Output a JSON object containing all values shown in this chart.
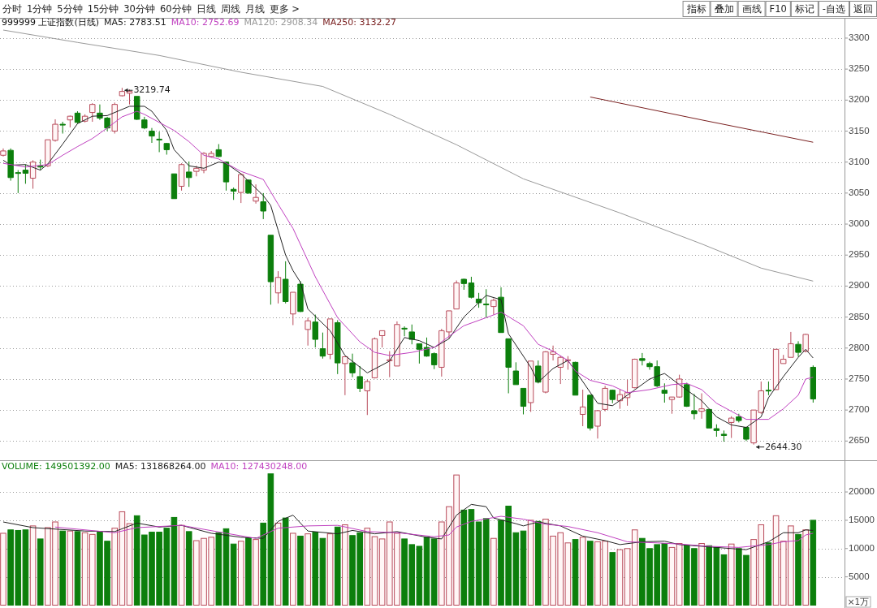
{
  "chart_data": [
    {
      "type": "candlestick",
      "title": "999999 上证指数(日线)",
      "categories": [
        null,
        null,
        null,
        null,
        null,
        null,
        null,
        null,
        null,
        null,
        null,
        null,
        null,
        null,
        null,
        null,
        null,
        null,
        null,
        null,
        null,
        null,
        null,
        null,
        null,
        null,
        null,
        null,
        null,
        null,
        null,
        null,
        null,
        null,
        null,
        null,
        null,
        null,
        null,
        null,
        null,
        null,
        null,
        null,
        null,
        null,
        null,
        null,
        null,
        null,
        null,
        null,
        null,
        null,
        null,
        null,
        null,
        null,
        null,
        null,
        null,
        null,
        null,
        null,
        null,
        null,
        null,
        null,
        null,
        null,
        null,
        null,
        null,
        null,
        null,
        null,
        null,
        null,
        null,
        null,
        null,
        null,
        null,
        null,
        null,
        null,
        null,
        null,
        null,
        null,
        null,
        null,
        null,
        null,
        null,
        null,
        null,
        null,
        null,
        null,
        null,
        null,
        null,
        null,
        null,
        null,
        null,
        null,
        null,
        null
      ],
      "ohlc": [
        [
          3111,
          3122,
          3109,
          3118
        ],
        [
          3119,
          3122,
          3070,
          3075
        ],
        [
          3083,
          3087,
          3050,
          3082
        ],
        [
          3087,
          3096,
          3065,
          3082
        ],
        [
          3074,
          3103,
          3057,
          3100
        ],
        [
          3094,
          3104,
          3087,
          3092
        ],
        [
          3094,
          3136,
          3092,
          3136
        ],
        [
          3135,
          3169,
          3133,
          3161
        ],
        [
          3161,
          3165,
          3146,
          3160
        ],
        [
          3168,
          3175,
          3156,
          3174
        ],
        [
          3179,
          3182,
          3162,
          3164
        ],
        [
          3166,
          3177,
          3164,
          3174
        ],
        [
          3180,
          3195,
          3165,
          3193
        ],
        [
          3179,
          3193,
          3168,
          3171
        ],
        [
          3171,
          3173,
          3150,
          3155
        ],
        [
          3150,
          3196,
          3146,
          3193
        ],
        [
          3207,
          3219.74,
          3206,
          3214
        ],
        [
          3211,
          3217,
          3193,
          3214
        ],
        [
          3206,
          3206,
          3168,
          3169
        ],
        [
          3168,
          3173,
          3153,
          3155
        ],
        [
          3150,
          3155,
          3131,
          3142
        ],
        [
          3137,
          3149,
          3116,
          3136
        ],
        [
          3130,
          3131,
          3112,
          3120
        ],
        [
          3081,
          3081,
          3041,
          3041
        ],
        [
          3061,
          3098,
          3054,
          3096
        ],
        [
          3084,
          3101,
          3060,
          3075
        ],
        [
          3085,
          3094,
          3077,
          3090
        ],
        [
          3087,
          3116,
          3082,
          3114
        ],
        [
          3109,
          3118,
          3107,
          3114
        ],
        [
          3120,
          3129,
          3108,
          3109
        ],
        [
          3100,
          3101,
          3054,
          3068
        ],
        [
          3056,
          3059,
          3039,
          3053
        ],
        [
          3051,
          3082,
          3034,
          3080
        ],
        [
          3071,
          3072,
          3049,
          3050
        ],
        [
          3037,
          3064,
          3033,
          3043
        ],
        [
          3036,
          3050,
          3008,
          3021
        ],
        [
          2982,
          2982,
          2870,
          2907
        ],
        [
          2889,
          2924,
          2872,
          2914
        ],
        [
          2911,
          2940,
          2872,
          2875
        ],
        [
          2855,
          2890,
          2837,
          2890
        ],
        [
          2903,
          2908,
          2858,
          2859
        ],
        [
          2830,
          2849,
          2804,
          2844
        ],
        [
          2842,
          2854,
          2801,
          2814
        ],
        [
          2799,
          2825,
          2783,
          2787
        ],
        [
          2790,
          2847,
          2782,
          2847
        ],
        [
          2841,
          2845,
          2758,
          2776
        ],
        [
          2775,
          2786,
          2724,
          2786
        ],
        [
          2776,
          2791,
          2753,
          2760
        ],
        [
          2754,
          2771,
          2729,
          2735
        ],
        [
          2731,
          2749,
          2692,
          2746
        ],
        [
          2752,
          2817,
          2751,
          2815
        ],
        [
          2820,
          2828,
          2801,
          2828
        ],
        [
          2780,
          2795,
          2753,
          2781
        ],
        [
          2771,
          2843,
          2771,
          2838
        ],
        [
          2832,
          2835,
          2819,
          2831
        ],
        [
          2826,
          2838,
          2806,
          2814
        ],
        [
          2807,
          2807,
          2775,
          2798
        ],
        [
          2801,
          2817,
          2786,
          2787
        ],
        [
          2791,
          2793,
          2766,
          2773
        ],
        [
          2769,
          2831,
          2754,
          2828
        ],
        [
          2826,
          2860,
          2815,
          2860
        ],
        [
          2863,
          2909,
          2863,
          2905
        ],
        [
          2911,
          2912,
          2894,
          2904
        ],
        [
          2905,
          2915,
          2880,
          2882
        ],
        [
          2879,
          2889,
          2865,
          2873
        ],
        [
          2871,
          2895,
          2849,
          2870
        ],
        [
          2867,
          2880,
          2854,
          2877
        ],
        [
          2882,
          2898,
          2825,
          2825
        ],
        [
          2815,
          2815,
          2727,
          2769
        ],
        [
          2763,
          2777,
          2741,
          2741
        ],
        [
          2735,
          2735,
          2693,
          2706
        ],
        [
          2712,
          2779,
          2697,
          2779
        ],
        [
          2771,
          2780,
          2743,
          2745
        ],
        [
          2729,
          2795,
          2727,
          2794
        ],
        [
          2790,
          2804,
          2780,
          2794
        ],
        [
          2769,
          2788,
          2742,
          2785
        ],
        [
          2780,
          2787,
          2765,
          2781
        ],
        [
          2777,
          2778,
          2724,
          2724
        ],
        [
          2693,
          2733,
          2674,
          2705
        ],
        [
          2724,
          2725,
          2667,
          2671
        ],
        [
          2674,
          2700,
          2654,
          2699
        ],
        [
          2701,
          2739,
          2698,
          2735
        ],
        [
          2732,
          2733,
          2711,
          2717
        ],
        [
          2715,
          2733,
          2702,
          2725
        ],
        [
          2720,
          2749,
          2707,
          2728
        ],
        [
          2736,
          2783,
          2735,
          2782
        ],
        [
          2783,
          2792,
          2772,
          2780
        ],
        [
          2775,
          2778,
          2765,
          2770
        ],
        [
          2770,
          2780,
          2737,
          2739
        ],
        [
          2732,
          2743,
          2712,
          2727
        ],
        [
          2717,
          2721,
          2694,
          2721
        ],
        [
          2721,
          2757,
          2720,
          2750
        ],
        [
          2741,
          2744,
          2705,
          2706
        ],
        [
          2699,
          2726,
          2685,
          2694
        ],
        [
          2698,
          2727,
          2686,
          2702
        ],
        [
          2701,
          2701,
          2671,
          2671
        ],
        [
          2670,
          2677,
          2657,
          2667
        ],
        [
          2661,
          2667,
          2649,
          2659
        ],
        [
          2680,
          2690,
          2655,
          2687
        ],
        [
          2689,
          2694,
          2680,
          2683
        ],
        [
          2672,
          2673,
          2650,
          2653
        ],
        [
          2647,
          2700,
          2644.3,
          2700
        ],
        [
          2696,
          2746,
          2694,
          2731
        ],
        [
          2732,
          2746,
          2724,
          2731
        ],
        [
          2733,
          2798,
          2733,
          2798
        ],
        [
          2775,
          2789,
          2775,
          2782
        ],
        [
          2785,
          2826,
          2785,
          2807
        ],
        [
          2806,
          2811,
          2786,
          2793
        ],
        [
          2795,
          2823,
          2793,
          2822
        ],
        [
          2769,
          2772,
          2712,
          2718
        ]
      ],
      "series": [
        {
          "name": "MA5: 2783.51",
          "type": "line",
          "color": "#222222",
          "values": [
            3103,
            3095,
            null,
            3096,
            null,
            3087,
            3097,
            null,
            3129,
            null,
            3162,
            null,
            3174,
            null,
            3175,
            null,
            null,
            3190,
            null,
            3190,
            3182,
            null,
            3151,
            3120,
            null,
            3094,
            null,
            3090,
            null,
            3100,
            3098,
            null,
            3081,
            null,
            null,
            3046,
            3030,
            2990,
            2950,
            2925,
            2906,
            2863,
            null,
            null,
            2828,
            null,
            2788,
            null,
            null,
            2760,
            null,
            null,
            2779,
            null,
            2817,
            null,
            2812,
            null,
            2801,
            null,
            2815,
            null,
            2850,
            null,
            null,
            2885,
            null,
            2878,
            2823,
            null,
            null,
            2769,
            2745,
            null,
            2767,
            null,
            2780,
            null,
            2746,
            null,
            2711,
            null,
            2707,
            null,
            2724,
            null,
            null,
            2750,
            null,
            2759,
            null,
            2741,
            null,
            null,
            2715,
            null,
            2689,
            null,
            2676,
            null,
            2672,
            null,
            2689,
            2720,
            null,
            2754,
            null,
            2785,
            2798,
            2784
          ]
        },
        {
          "name": "MA10: 2752.69",
          "type": "line",
          "color": "#c040c0",
          "values": [
            3098,
            null,
            null,
            3092,
            null,
            null,
            3096,
            null,
            3111,
            null,
            3125,
            null,
            3138,
            null,
            3155,
            null,
            3173,
            null,
            3182,
            3177,
            null,
            3164,
            null,
            3151,
            null,
            3133,
            null,
            3111,
            null,
            3105,
            3098,
            null,
            3085,
            null,
            null,
            3072,
            null,
            3032,
            null,
            2993,
            null,
            null,
            2915,
            null,
            null,
            2849,
            null,
            null,
            2810,
            null,
            2793,
            null,
            2788,
            null,
            null,
            2793,
            null,
            null,
            2801,
            null,
            2819,
            null,
            2836,
            null,
            null,
            2849,
            null,
            2858,
            null,
            null,
            2836,
            null,
            2806,
            null,
            2795,
            null,
            2780,
            2763,
            null,
            2748,
            null,
            null,
            2739,
            null,
            2728,
            null,
            null,
            2733,
            null,
            null,
            2741,
            null,
            2743,
            null,
            2733,
            null,
            2711,
            null,
            2698,
            null,
            2685,
            null,
            null,
            2685,
            null,
            2702,
            null,
            2724,
            2750,
            2753
          ]
        },
        {
          "name": "MA120: 2908.34",
          "type": "line",
          "color": "#999999",
          "values": [
            3313,
            null,
            null,
            null,
            null,
            null,
            null,
            null,
            null,
            null,
            3293,
            null,
            null,
            null,
            null,
            null,
            null,
            null,
            null,
            null,
            null,
            3272,
            null,
            null,
            null,
            null,
            null,
            null,
            null,
            null,
            null,
            null,
            3245,
            null,
            null,
            null,
            null,
            null,
            null,
            null,
            null,
            null,
            null,
            3222,
            null,
            null,
            null,
            null,
            null,
            null,
            null,
            null,
            3177,
            null,
            null,
            null,
            null,
            null,
            null,
            null,
            null,
            3128,
            null,
            null,
            null,
            null,
            null,
            null,
            null,
            null,
            3073,
            null,
            null,
            null,
            null,
            null,
            null,
            null,
            null,
            null,
            null,
            null,
            null,
            3018,
            null,
            null,
            null,
            null,
            null,
            null,
            null,
            null,
            null,
            null,
            2968,
            null,
            null,
            null,
            null,
            null,
            null,
            null,
            2929,
            null,
            null,
            null,
            null,
            null,
            null,
            2908
          ]
        },
        {
          "name": "MA250: 3132.27",
          "type": "line",
          "color": "#7a2020",
          "values": [
            null,
            null,
            null,
            null,
            null,
            null,
            null,
            null,
            null,
            null,
            null,
            null,
            null,
            null,
            null,
            null,
            null,
            null,
            null,
            null,
            null,
            null,
            null,
            null,
            null,
            null,
            null,
            null,
            null,
            null,
            null,
            null,
            null,
            null,
            null,
            null,
            null,
            null,
            null,
            null,
            null,
            null,
            null,
            null,
            null,
            null,
            null,
            null,
            null,
            null,
            null,
            null,
            null,
            null,
            null,
            null,
            null,
            null,
            null,
            null,
            null,
            null,
            null,
            null,
            null,
            null,
            null,
            null,
            null,
            null,
            null,
            null,
            null,
            null,
            null,
            null,
            null,
            null,
            null,
            3205,
            null,
            null,
            null,
            null,
            null,
            null,
            null,
            null,
            null,
            null,
            null,
            null,
            null,
            null,
            3168,
            null,
            null,
            null,
            null,
            null,
            null,
            null,
            null,
            null,
            null,
            null,
            null,
            null,
            null,
            3132
          ]
        }
      ],
      "ylim": [
        2619,
        3332
      ],
      "yticks": [
        2650,
        2700,
        2750,
        2800,
        2850,
        2900,
        2950,
        3000,
        3050,
        3100,
        3150,
        3200,
        3250,
        3300
      ],
      "grid": "y",
      "tick_labels": "y",
      "legend": "top left",
      "annotations": [
        "分时",
        "1分钟",
        "5分钟",
        "15分钟",
        "30分钟",
        "60分钟",
        "日线",
        "周线",
        "月线",
        "更多 >",
        "指标",
        "叠加",
        "画线",
        "F10",
        "标记",
        "-自选",
        "返回",
        "3219.74",
        "2644.30"
      ]
    },
    {
      "type": "bar",
      "ylabel": "×1万",
      "categories": [
        null,
        null,
        null,
        null,
        null,
        null,
        null,
        null,
        null,
        null,
        null,
        null,
        null,
        null,
        null,
        null,
        null,
        null,
        null,
        null,
        null,
        null,
        null,
        null,
        null,
        null,
        null,
        null,
        null,
        null,
        null,
        null,
        null,
        null,
        null,
        null,
        null,
        null,
        null,
        null,
        null,
        null,
        null,
        null,
        null,
        null,
        null,
        null,
        null,
        null,
        null,
        null,
        null,
        null,
        null,
        null,
        null,
        null,
        null,
        null,
        null,
        null,
        null,
        null,
        null,
        null,
        null,
        null,
        null,
        null,
        null,
        null,
        null,
        null,
        null,
        null,
        null,
        null,
        null,
        null,
        null,
        null,
        null,
        null,
        null,
        null,
        null,
        null,
        null,
        null,
        null,
        null,
        null,
        null,
        null,
        null,
        null,
        null,
        null,
        null,
        null,
        null,
        null,
        null,
        null,
        null,
        null,
        null,
        null,
        null
      ],
      "series": [
        {
          "name": "VOLUME: 149501392.00",
          "type": "bar",
          "values": [
            12700,
            13300,
            13200,
            13300,
            14000,
            11700,
            13700,
            14700,
            13100,
            13100,
            13000,
            12800,
            12500,
            13000,
            11300,
            13600,
            16500,
            14400,
            15800,
            12400,
            12900,
            12900,
            13600,
            15500,
            14100,
            13000,
            11400,
            11800,
            12000,
            12800,
            13500,
            10800,
            11300,
            11900,
            11600,
            14500,
            23200,
            14500,
            15400,
            12700,
            12200,
            12600,
            12900,
            11800,
            12600,
            13800,
            14200,
            12300,
            12800,
            13600,
            12100,
            11700,
            14700,
            12700,
            11700,
            10700,
            10400,
            12000,
            11700,
            14700,
            17400,
            23000,
            16800,
            16900,
            14700,
            15300,
            11800,
            15000,
            17500,
            12800,
            13100,
            15000,
            14800,
            15200,
            12200,
            12800,
            11000,
            11600,
            12000,
            11300,
            11200,
            11300,
            9300,
            9800,
            10000,
            13300,
            11800,
            10000,
            10700,
            10900,
            10200,
            10900,
            10600,
            10000,
            10900,
            10500,
            10200,
            8900,
            10800,
            10000,
            8800,
            11600,
            14200,
            11000,
            15800,
            11300,
            14000,
            12500,
            13300,
            15000
          ],
          "colors": [
            "#b84a5a",
            "#0c7f0c",
            "#0c7f0c",
            "#0c7f0c",
            "#b84a5a",
            "#0c7f0c",
            "#b84a5a",
            "#b84a5a",
            "#0c7f0c",
            "#b84a5a",
            "#0c7f0c",
            "#b84a5a",
            "#b84a5a",
            "#0c7f0c",
            "#0c7f0c",
            "#b84a5a",
            "#b84a5a",
            "#b84a5a",
            "#0c7f0c",
            "#0c7f0c",
            "#0c7f0c",
            "#0c7f0c",
            "#0c7f0c",
            "#0c7f0c",
            "#b84a5a",
            "#0c7f0c",
            "#b84a5a",
            "#b84a5a",
            "#b84a5a",
            "#0c7f0c",
            "#0c7f0c",
            "#0c7f0c",
            "#b84a5a",
            "#0c7f0c",
            "#b84a5a",
            "#0c7f0c",
            "#0c7f0c",
            "#b84a5a",
            "#0c7f0c",
            "#b84a5a",
            "#0c7f0c",
            "#b84a5a",
            "#0c7f0c",
            "#0c7f0c",
            "#b84a5a",
            "#0c7f0c",
            "#b84a5a",
            "#0c7f0c",
            "#0c7f0c",
            "#b84a5a",
            "#b84a5a",
            "#b84a5a",
            "#b84a5a",
            "#b84a5a",
            "#0c7f0c",
            "#0c7f0c",
            "#0c7f0c",
            "#0c7f0c",
            "#0c7f0c",
            "#b84a5a",
            "#b84a5a",
            "#b84a5a",
            "#0c7f0c",
            "#0c7f0c",
            "#0c7f0c",
            "#0c7f0c",
            "#b84a5a",
            "#0c7f0c",
            "#0c7f0c",
            "#0c7f0c",
            "#0c7f0c",
            "#b84a5a",
            "#0c7f0c",
            "#b84a5a",
            "#b84a5a",
            "#b84a5a",
            "#b84a5a",
            "#0c7f0c",
            "#b84a5a",
            "#0c7f0c",
            "#b84a5a",
            "#b84a5a",
            "#0c7f0c",
            "#b84a5a",
            "#b84a5a",
            "#b84a5a",
            "#0c7f0c",
            "#0c7f0c",
            "#0c7f0c",
            "#0c7f0c",
            "#b84a5a",
            "#b84a5a",
            "#0c7f0c",
            "#0c7f0c",
            "#b84a5a",
            "#0c7f0c",
            "#0c7f0c",
            "#0c7f0c",
            "#b84a5a",
            "#0c7f0c",
            "#0c7f0c",
            "#b84a5a",
            "#b84a5a",
            "#0c7f0c",
            "#b84a5a",
            "#b84a5a",
            "#b84a5a",
            "#0c7f0c",
            "#b84a5a",
            "#0c7f0c"
          ]
        },
        {
          "name": "MA5: 131868264.00",
          "type": "line",
          "color": "#222222",
          "values": [
            14700,
            null,
            null,
            null,
            13700,
            null,
            null,
            null,
            null,
            null,
            null,
            13100,
            null,
            null,
            null,
            13000,
            null,
            null,
            14500,
            null,
            null,
            13800,
            null,
            null,
            14100,
            null,
            null,
            null,
            12700,
            null,
            null,
            null,
            12000,
            null,
            null,
            11800,
            null,
            14800,
            null,
            15900,
            null,
            13100,
            null,
            null,
            null,
            12600,
            null,
            13200,
            null,
            null,
            12600,
            null,
            null,
            13000,
            null,
            null,
            null,
            12000,
            null,
            11700,
            null,
            15900,
            null,
            17800,
            null,
            17400,
            15400,
            null,
            null,
            14400,
            14000,
            null,
            14700,
            null,
            null,
            14000,
            null,
            null,
            12200,
            null,
            null,
            11400,
            null,
            10700,
            null,
            null,
            11200,
            null,
            null,
            11300,
            null,
            10700,
            null,
            null,
            null,
            10300,
            null,
            null,
            null,
            null,
            9800,
            null,
            null,
            11200,
            null,
            12800,
            null,
            12800,
            13300,
            13200
          ]
        },
        {
          "name": "MA10: 127430248.00",
          "type": "line",
          "color": "#c040c0",
          "values": [
            null,
            null,
            null,
            null,
            null,
            null,
            null,
            13800,
            null,
            null,
            null,
            null,
            null,
            null,
            null,
            12800,
            null,
            null,
            13700,
            null,
            null,
            null,
            null,
            null,
            14100,
            null,
            null,
            null,
            null,
            null,
            12700,
            null,
            null,
            null,
            11800,
            null,
            null,
            13600,
            null,
            null,
            null,
            14000,
            null,
            null,
            null,
            14100,
            null,
            null,
            null,
            13000,
            null,
            null,
            null,
            12800,
            null,
            null,
            null,
            null,
            12100,
            null,
            12400,
            13800,
            null,
            14800,
            null,
            null,
            null,
            15700,
            null,
            null,
            15200,
            null,
            null,
            14300,
            null,
            null,
            13900,
            null,
            null,
            null,
            12800,
            null,
            null,
            null,
            11200,
            null,
            null,
            null,
            11000,
            null,
            null,
            10800,
            null,
            null,
            null,
            10400,
            null,
            null,
            null,
            10200,
            null,
            null,
            null,
            10700,
            null,
            11200,
            null,
            11400,
            12400,
            12700
          ]
        }
      ],
      "ylim": [
        0,
        25600
      ],
      "yticks": [
        5000,
        10000,
        15000,
        20000
      ],
      "grid": "y",
      "tick_labels": "y",
      "legend": "top left"
    }
  ]
}
